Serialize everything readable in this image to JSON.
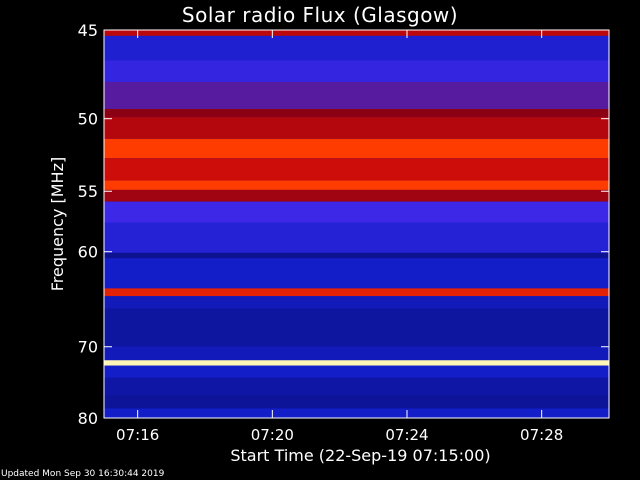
{
  "chart_data": {
    "type": "heatmap",
    "title": "Solar radio Flux (Glasgow)",
    "xlabel": "Start Time (22-Sep-19 07:15:00)",
    "ylabel": "Frequency [MHz]",
    "x_ticks": [
      "07:16",
      "07:20",
      "07:24",
      "07:28"
    ],
    "x_tick_minutes": [
      1,
      5,
      9,
      13
    ],
    "x_range_minutes": [
      0,
      15
    ],
    "y_ticks": [
      45,
      50,
      55,
      60,
      70,
      80
    ],
    "ylim": [
      45,
      80
    ],
    "y_scale": "reciprocal",
    "colormap": "blue-red-yellow",
    "bands_mhz": [
      {
        "from": 45.0,
        "to": 45.3,
        "level": 0.62
      },
      {
        "from": 45.3,
        "to": 46.6,
        "level": 0.24
      },
      {
        "from": 46.6,
        "to": 47.8,
        "level": 0.32
      },
      {
        "from": 47.8,
        "to": 49.4,
        "level": 0.4
      },
      {
        "from": 49.4,
        "to": 49.9,
        "level": 0.5
      },
      {
        "from": 49.9,
        "to": 51.3,
        "level": 0.6
      },
      {
        "from": 51.3,
        "to": 52.6,
        "level": 0.8
      },
      {
        "from": 52.6,
        "to": 54.2,
        "level": 0.66
      },
      {
        "from": 54.2,
        "to": 54.9,
        "level": 0.8
      },
      {
        "from": 54.9,
        "to": 55.8,
        "level": 0.55
      },
      {
        "from": 55.8,
        "to": 57.5,
        "level": 0.35
      },
      {
        "from": 57.5,
        "to": 60.1,
        "level": 0.26
      },
      {
        "from": 60.1,
        "to": 60.6,
        "level": 0.12
      },
      {
        "from": 60.6,
        "to": 63.5,
        "level": 0.2
      },
      {
        "from": 63.5,
        "to": 64.3,
        "level": 0.72
      },
      {
        "from": 64.3,
        "to": 65.6,
        "level": 0.18
      },
      {
        "from": 65.6,
        "to": 70.0,
        "level": 0.14
      },
      {
        "from": 70.0,
        "to": 71.7,
        "level": 0.18
      },
      {
        "from": 71.7,
        "to": 72.4,
        "level": 0.98
      },
      {
        "from": 72.4,
        "to": 74.0,
        "level": 0.2
      },
      {
        "from": 74.0,
        "to": 76.5,
        "level": 0.15
      },
      {
        "from": 76.5,
        "to": 78.5,
        "level": 0.13
      },
      {
        "from": 78.5,
        "to": 80.0,
        "level": 0.2
      }
    ],
    "grid": false
  },
  "footer_text": "Updated Mon Sep 30 16:30:44 2019"
}
